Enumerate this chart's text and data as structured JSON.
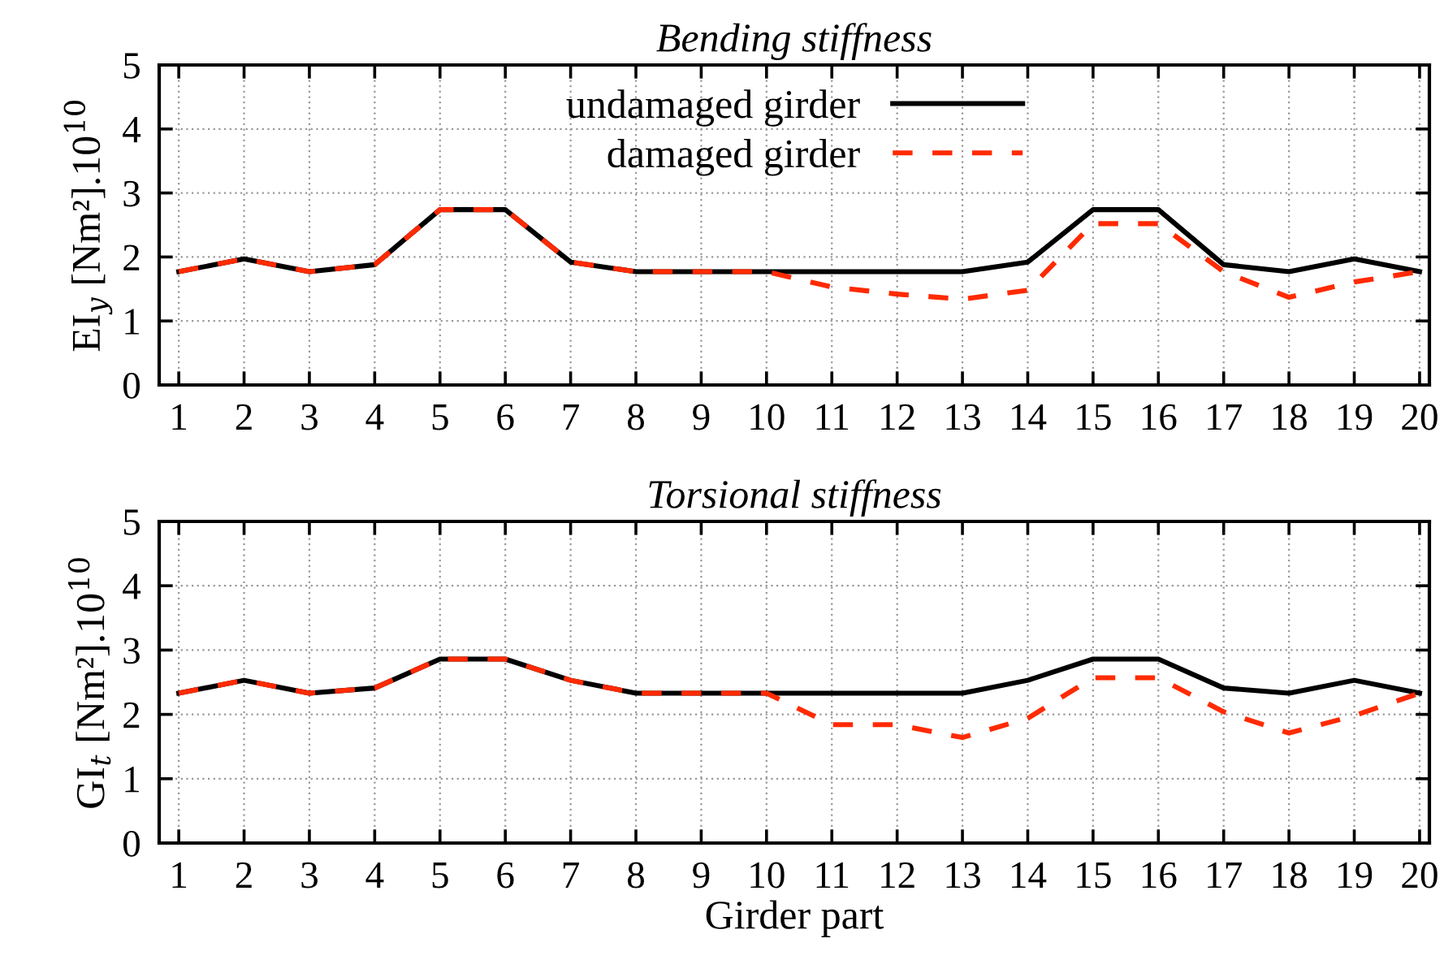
{
  "chart_data": [
    {
      "type": "line",
      "title": "Bending stiffness",
      "ylabel": "EI$_{y}$ [Nm²].10$^{10}$",
      "categories": [
        "1",
        "2",
        "3",
        "4",
        "5",
        "6",
        "7",
        "8",
        "9",
        "10",
        "11",
        "12",
        "13",
        "14",
        "15",
        "16",
        "17",
        "18",
        "19",
        "20"
      ],
      "ylim": [
        0,
        5
      ],
      "yticks": [
        0,
        1,
        2,
        3,
        4,
        5
      ],
      "grid": true,
      "legend": "top",
      "marker": "none",
      "series": [
        {
          "name": "undamaged girder",
          "color": "#000000",
          "line_style": "solid",
          "values": [
            1.77,
            1.97,
            1.77,
            1.88,
            2.74,
            2.74,
            1.92,
            1.77,
            1.77,
            1.77,
            1.77,
            1.77,
            1.77,
            1.92,
            2.74,
            2.74,
            1.88,
            1.77,
            1.97,
            1.77
          ]
        },
        {
          "name": "damaged girder",
          "color": "#ff2a00",
          "line_style": "dashed",
          "values": [
            1.77,
            1.97,
            1.77,
            1.88,
            2.74,
            2.74,
            1.92,
            1.77,
            1.77,
            1.77,
            1.53,
            1.42,
            1.34,
            1.48,
            2.52,
            2.52,
            1.77,
            1.37,
            1.61,
            1.77
          ]
        }
      ]
    },
    {
      "type": "line",
      "title": "Torsional stiffness",
      "ylabel": "GI$_{t}$ [Nm²].10$^{10}$",
      "xlabel": "Girder part",
      "categories": [
        "1",
        "2",
        "3",
        "4",
        "5",
        "6",
        "7",
        "8",
        "9",
        "10",
        "11",
        "12",
        "13",
        "14",
        "15",
        "16",
        "17",
        "18",
        "19",
        "20"
      ],
      "ylim": [
        0,
        5
      ],
      "yticks": [
        0,
        1,
        2,
        3,
        4,
        5
      ],
      "grid": true,
      "marker": "none",
      "series": [
        {
          "color": "#000000",
          "line_style": "solid",
          "values": [
            2.33,
            2.53,
            2.33,
            2.41,
            2.86,
            2.86,
            2.53,
            2.33,
            2.33,
            2.33,
            2.33,
            2.33,
            2.33,
            2.53,
            2.86,
            2.86,
            2.41,
            2.33,
            2.53,
            2.33
          ]
        },
        {
          "color": "#ff2a00",
          "line_style": "dashed",
          "values": [
            2.33,
            2.53,
            2.33,
            2.41,
            2.86,
            2.86,
            2.53,
            2.33,
            2.33,
            2.33,
            1.84,
            1.84,
            1.64,
            1.94,
            2.57,
            2.57,
            2.04,
            1.71,
            1.98,
            2.33
          ]
        }
      ]
    }
  ]
}
